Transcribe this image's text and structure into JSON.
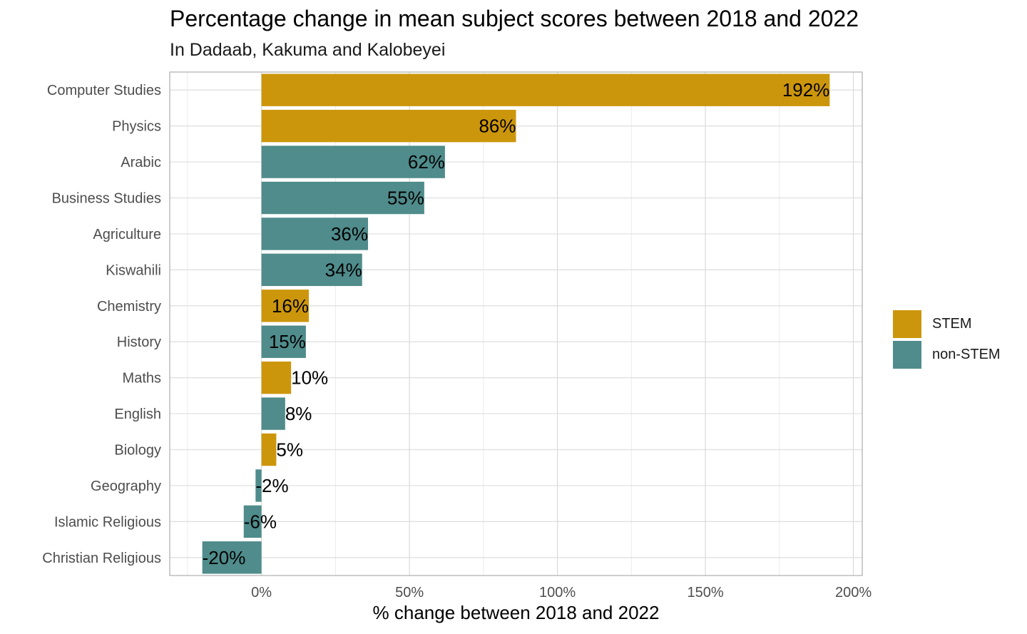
{
  "colors": {
    "STEM": "#CC960C",
    "non-STEM": "#4F8C8B"
  },
  "chart_data": {
    "type": "bar",
    "orientation": "horizontal",
    "title": "Percentage change in mean subject scores between 2018 and 2022",
    "subtitle": "In Dadaab, Kakuma and Kalobeyei",
    "xlabel": "% change between 2018 and 2022",
    "ylabel": "",
    "xlim": [
      -31,
      203
    ],
    "xticks": [
      0,
      50,
      100,
      150,
      200
    ],
    "xtick_labels": [
      "0%",
      "50%",
      "100%",
      "150%",
      "200%"
    ],
    "grid": true,
    "legend_position": "right",
    "legend": [
      "STEM",
      "non-STEM"
    ],
    "categories": [
      "Computer Studies",
      "Physics",
      "Arabic",
      "Business Studies",
      "Agriculture",
      "Kiswahili",
      "Chemistry",
      "History",
      "Maths",
      "English",
      "Biology",
      "Geography",
      "Islamic Religious",
      "Christian Religious"
    ],
    "values": [
      192,
      86,
      62,
      55,
      36,
      34,
      16,
      15,
      10,
      8,
      5,
      -2,
      -6,
      -20
    ],
    "labels": [
      "192%",
      "86%",
      "62%",
      "55%",
      "36%",
      "34%",
      "16%",
      "15%",
      "10%",
      "8%",
      "5%",
      "-2%",
      "-6%",
      "-20%"
    ],
    "groups": [
      "STEM",
      "STEM",
      "non-STEM",
      "non-STEM",
      "non-STEM",
      "non-STEM",
      "STEM",
      "non-STEM",
      "STEM",
      "non-STEM",
      "STEM",
      "non-STEM",
      "non-STEM",
      "non-STEM"
    ]
  }
}
